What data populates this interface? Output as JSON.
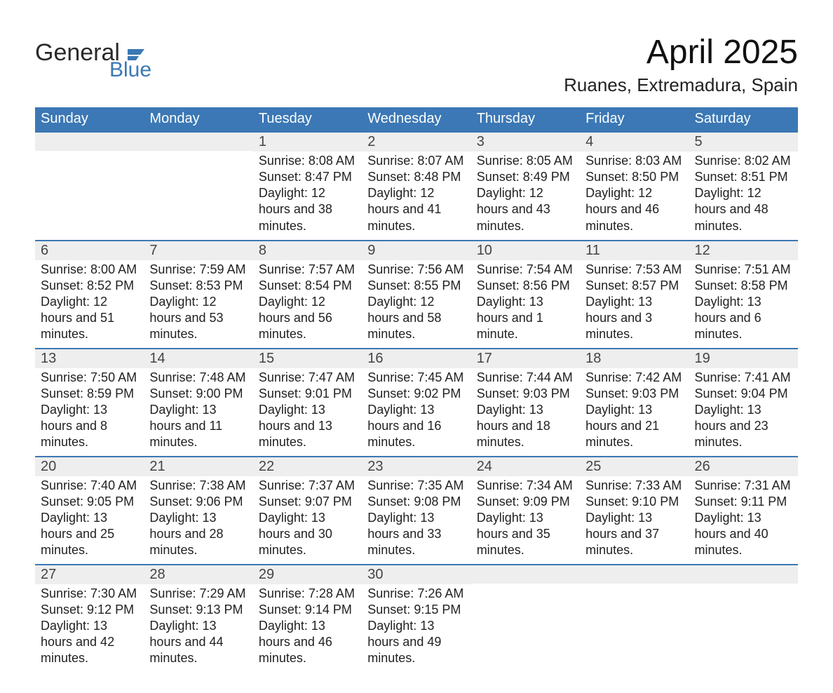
{
  "colors": {
    "header_bg": "#3b78b5",
    "header_text": "#ffffff",
    "daynum_bg": "#eeeeee",
    "week_border": "#3b78b5",
    "page_bg": "#ffffff",
    "body_text": "#222222",
    "logo_blue": "#3b78b5"
  },
  "typography": {
    "title_fontsize": 48,
    "location_fontsize": 26,
    "dayhead_fontsize": 20,
    "daynum_fontsize": 20,
    "body_fontsize": 18
  },
  "logo": {
    "word1": "General",
    "word2": "Blue"
  },
  "title": "April 2025",
  "location": "Ruanes, Extremadura, Spain",
  "day_headers": [
    "Sunday",
    "Monday",
    "Tuesday",
    "Wednesday",
    "Thursday",
    "Friday",
    "Saturday"
  ],
  "labels": {
    "sunrise": "Sunrise: ",
    "sunset": "Sunset: ",
    "daylight": "Daylight: "
  },
  "weeks": [
    [
      null,
      null,
      {
        "n": "1",
        "sr": "8:08 AM",
        "ss": "8:47 PM",
        "dl": "12 hours and 38 minutes."
      },
      {
        "n": "2",
        "sr": "8:07 AM",
        "ss": "8:48 PM",
        "dl": "12 hours and 41 minutes."
      },
      {
        "n": "3",
        "sr": "8:05 AM",
        "ss": "8:49 PM",
        "dl": "12 hours and 43 minutes."
      },
      {
        "n": "4",
        "sr": "8:03 AM",
        "ss": "8:50 PM",
        "dl": "12 hours and 46 minutes."
      },
      {
        "n": "5",
        "sr": "8:02 AM",
        "ss": "8:51 PM",
        "dl": "12 hours and 48 minutes."
      }
    ],
    [
      {
        "n": "6",
        "sr": "8:00 AM",
        "ss": "8:52 PM",
        "dl": "12 hours and 51 minutes."
      },
      {
        "n": "7",
        "sr": "7:59 AM",
        "ss": "8:53 PM",
        "dl": "12 hours and 53 minutes."
      },
      {
        "n": "8",
        "sr": "7:57 AM",
        "ss": "8:54 PM",
        "dl": "12 hours and 56 minutes."
      },
      {
        "n": "9",
        "sr": "7:56 AM",
        "ss": "8:55 PM",
        "dl": "12 hours and 58 minutes."
      },
      {
        "n": "10",
        "sr": "7:54 AM",
        "ss": "8:56 PM",
        "dl": "13 hours and 1 minute."
      },
      {
        "n": "11",
        "sr": "7:53 AM",
        "ss": "8:57 PM",
        "dl": "13 hours and 3 minutes."
      },
      {
        "n": "12",
        "sr": "7:51 AM",
        "ss": "8:58 PM",
        "dl": "13 hours and 6 minutes."
      }
    ],
    [
      {
        "n": "13",
        "sr": "7:50 AM",
        "ss": "8:59 PM",
        "dl": "13 hours and 8 minutes."
      },
      {
        "n": "14",
        "sr": "7:48 AM",
        "ss": "9:00 PM",
        "dl": "13 hours and 11 minutes."
      },
      {
        "n": "15",
        "sr": "7:47 AM",
        "ss": "9:01 PM",
        "dl": "13 hours and 13 minutes."
      },
      {
        "n": "16",
        "sr": "7:45 AM",
        "ss": "9:02 PM",
        "dl": "13 hours and 16 minutes."
      },
      {
        "n": "17",
        "sr": "7:44 AM",
        "ss": "9:03 PM",
        "dl": "13 hours and 18 minutes."
      },
      {
        "n": "18",
        "sr": "7:42 AM",
        "ss": "9:03 PM",
        "dl": "13 hours and 21 minutes."
      },
      {
        "n": "19",
        "sr": "7:41 AM",
        "ss": "9:04 PM",
        "dl": "13 hours and 23 minutes."
      }
    ],
    [
      {
        "n": "20",
        "sr": "7:40 AM",
        "ss": "9:05 PM",
        "dl": "13 hours and 25 minutes."
      },
      {
        "n": "21",
        "sr": "7:38 AM",
        "ss": "9:06 PM",
        "dl": "13 hours and 28 minutes."
      },
      {
        "n": "22",
        "sr": "7:37 AM",
        "ss": "9:07 PM",
        "dl": "13 hours and 30 minutes."
      },
      {
        "n": "23",
        "sr": "7:35 AM",
        "ss": "9:08 PM",
        "dl": "13 hours and 33 minutes."
      },
      {
        "n": "24",
        "sr": "7:34 AM",
        "ss": "9:09 PM",
        "dl": "13 hours and 35 minutes."
      },
      {
        "n": "25",
        "sr": "7:33 AM",
        "ss": "9:10 PM",
        "dl": "13 hours and 37 minutes."
      },
      {
        "n": "26",
        "sr": "7:31 AM",
        "ss": "9:11 PM",
        "dl": "13 hours and 40 minutes."
      }
    ],
    [
      {
        "n": "27",
        "sr": "7:30 AM",
        "ss": "9:12 PM",
        "dl": "13 hours and 42 minutes."
      },
      {
        "n": "28",
        "sr": "7:29 AM",
        "ss": "9:13 PM",
        "dl": "13 hours and 44 minutes."
      },
      {
        "n": "29",
        "sr": "7:28 AM",
        "ss": "9:14 PM",
        "dl": "13 hours and 46 minutes."
      },
      {
        "n": "30",
        "sr": "7:26 AM",
        "ss": "9:15 PM",
        "dl": "13 hours and 49 minutes."
      },
      null,
      null,
      null
    ]
  ]
}
